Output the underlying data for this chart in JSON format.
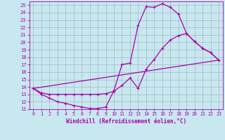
{
  "xlabel": "Windchill (Refroidissement éolien,°C)",
  "xlim": [
    -0.5,
    23.5
  ],
  "ylim": [
    11,
    25.5
  ],
  "xticks": [
    0,
    1,
    2,
    3,
    4,
    5,
    6,
    7,
    8,
    9,
    10,
    11,
    12,
    13,
    14,
    15,
    16,
    17,
    18,
    19,
    20,
    21,
    22,
    23
  ],
  "yticks": [
    11,
    12,
    13,
    14,
    15,
    16,
    17,
    18,
    19,
    20,
    21,
    22,
    23,
    24,
    25
  ],
  "bg_color": "#c8e8f0",
  "grid_color": "#a0b8c0",
  "line_color": "#aa00aa",
  "series1_x": [
    0,
    1,
    2,
    3,
    4,
    5,
    6,
    7,
    8,
    9,
    10,
    11,
    12,
    13,
    14,
    15,
    16,
    17,
    18,
    19,
    20,
    21,
    22,
    23
  ],
  "series1_y": [
    13.8,
    13.0,
    12.5,
    12.0,
    11.8,
    11.5,
    11.3,
    11.1,
    11.1,
    11.3,
    13.5,
    17.0,
    17.2,
    22.3,
    24.8,
    24.7,
    25.2,
    24.7,
    23.8,
    21.2,
    20.1,
    19.2,
    18.6,
    17.6
  ],
  "series2_x": [
    0,
    1,
    2,
    3,
    4,
    5,
    6,
    7,
    8,
    9,
    10,
    11,
    12,
    13,
    14,
    15,
    16,
    17,
    18,
    19,
    20,
    21,
    22,
    23
  ],
  "series2_y": [
    13.8,
    13.2,
    13.0,
    13.0,
    13.0,
    13.0,
    13.0,
    13.0,
    13.0,
    13.1,
    13.4,
    14.2,
    15.2,
    13.8,
    16.4,
    17.7,
    19.2,
    20.3,
    20.9,
    21.2,
    20.1,
    19.2,
    18.6,
    17.6
  ],
  "series3_x": [
    0,
    23
  ],
  "series3_y": [
    13.8,
    17.6
  ]
}
